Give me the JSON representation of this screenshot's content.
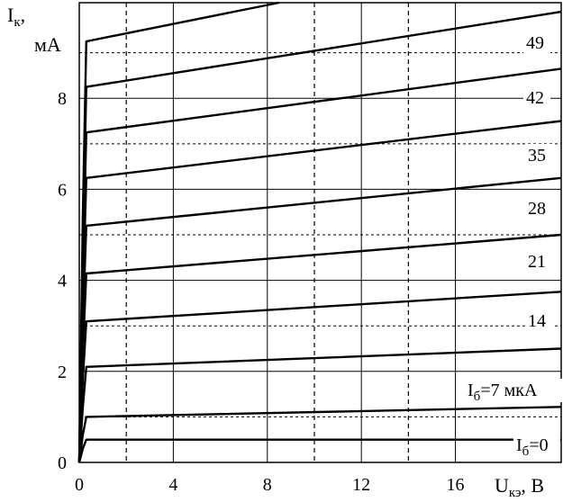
{
  "chart_data": {
    "type": "line",
    "title": "",
    "xlabel": {
      "main": "U",
      "sub": "кэ",
      "unit": ", В"
    },
    "ylabel": {
      "main": "I",
      "sub": "к",
      "suffix": ",",
      "unit": "мА"
    },
    "xlim": [
      0,
      20.5
    ],
    "ylim": [
      0,
      10.1
    ],
    "x_ticks": [
      "0",
      "4",
      "8",
      "12",
      "16"
    ],
    "x_tick_values": [
      0,
      4,
      8,
      12,
      16
    ],
    "y_ticks": [
      "0",
      "2",
      "4",
      "6",
      "8"
    ],
    "y_tick_values": [
      0,
      2,
      4,
      6,
      8
    ],
    "grid_solid_x": [
      4,
      8,
      12,
      16
    ],
    "grid_dashed_x": [
      2,
      10,
      14
    ],
    "grid_solid_y": [
      2,
      4,
      6,
      8
    ],
    "grid_dashed_y": [
      1,
      3,
      5,
      7,
      9
    ],
    "grid": true,
    "series": [
      {
        "label_name": "I",
        "label_sub": "б",
        "label_rest": "=0",
        "points": [
          [
            0,
            0
          ],
          [
            0.15,
            0.3
          ],
          [
            0.3,
            0.5
          ],
          [
            20.5,
            0.5
          ]
        ]
      },
      {
        "label_name": "I",
        "label_sub": "б",
        "label_rest": "=7 мкА",
        "points": [
          [
            0,
            0
          ],
          [
            0.15,
            0.6
          ],
          [
            0.3,
            1.0
          ],
          [
            20.5,
            1.22
          ]
        ]
      },
      {
        "label_name": "",
        "label_sub": "",
        "label_rest": "",
        "points": [
          [
            0,
            0
          ],
          [
            0.15,
            1.2
          ],
          [
            0.3,
            2.1
          ],
          [
            20.5,
            2.5
          ]
        ]
      },
      {
        "label_name": "",
        "label_sub": "",
        "label_rest": "14",
        "points": [
          [
            0,
            0
          ],
          [
            0.15,
            1.8
          ],
          [
            0.3,
            3.1
          ],
          [
            20.5,
            3.75
          ]
        ]
      },
      {
        "label_name": "",
        "label_sub": "",
        "label_rest": "21",
        "points": [
          [
            0,
            0
          ],
          [
            0.15,
            2.4
          ],
          [
            0.3,
            4.15
          ],
          [
            20.5,
            5.0
          ]
        ]
      },
      {
        "label_name": "",
        "label_sub": "",
        "label_rest": "28",
        "points": [
          [
            0,
            0
          ],
          [
            0.15,
            3.0
          ],
          [
            0.3,
            5.2
          ],
          [
            20.5,
            6.25
          ]
        ]
      },
      {
        "label_name": "",
        "label_sub": "",
        "label_rest": "35",
        "points": [
          [
            0,
            0
          ],
          [
            0.15,
            3.6
          ],
          [
            0.3,
            6.25
          ],
          [
            20.5,
            7.5
          ]
        ]
      },
      {
        "label_name": "",
        "label_sub": "",
        "label_rest": "42",
        "points": [
          [
            0,
            0
          ],
          [
            0.15,
            4.2
          ],
          [
            0.3,
            7.25
          ],
          [
            20.5,
            8.65
          ]
        ]
      },
      {
        "label_name": "",
        "label_sub": "",
        "label_rest": "49",
        "points": [
          [
            0,
            0
          ],
          [
            0.15,
            4.8
          ],
          [
            0.3,
            8.25
          ],
          [
            20.5,
            9.9
          ]
        ]
      },
      {
        "label_name": "",
        "label_sub": "",
        "label_rest": "",
        "points": [
          [
            0,
            0
          ],
          [
            0.15,
            5.4
          ],
          [
            0.3,
            9.25
          ],
          [
            8.5,
            10.1
          ]
        ]
      }
    ]
  }
}
